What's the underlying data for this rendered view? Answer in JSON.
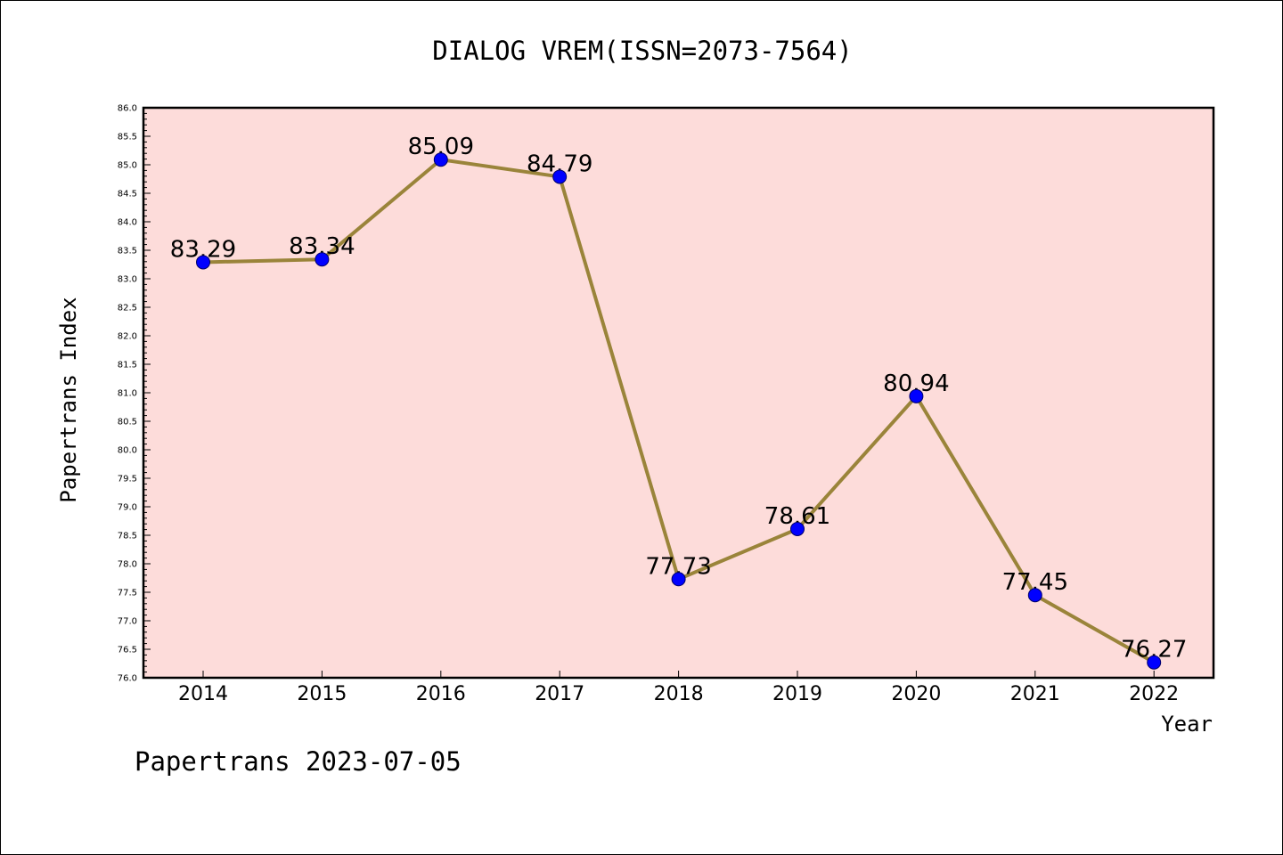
{
  "chart_data": {
    "type": "line",
    "title": "DIALOG VREM(ISSN=2073-7564)",
    "xlabel": "Year",
    "ylabel": "Papertrans Index",
    "categories": [
      "2014",
      "2015",
      "2016",
      "2017",
      "2018",
      "2019",
      "2020",
      "2021",
      "2022"
    ],
    "series": [
      {
        "values": [
          83.29,
          83.34,
          85.09,
          84.79,
          77.73,
          78.61,
          80.94,
          77.45,
          76.27
        ],
        "data_labels": [
          "83.29",
          "83.34",
          "85.09",
          "84.79",
          "77.73",
          "78.61",
          "80.94",
          "77.45",
          "76.27"
        ],
        "line_color": "#9a843a",
        "marker_color": "#0000ff"
      }
    ],
    "ylim": [
      76.0,
      86.0
    ],
    "yticks": [
      "76.0",
      "76.5",
      "77.0",
      "77.5",
      "78.0",
      "78.5",
      "79.0",
      "79.5",
      "80.0",
      "80.5",
      "81.0",
      "81.5",
      "82.0",
      "82.5",
      "83.0",
      "83.5",
      "84.0",
      "84.5",
      "85.0",
      "85.5",
      "86.0"
    ],
    "grid": false,
    "plot_background": "#fddcda"
  },
  "footer": {
    "text": "Papertrans 2023-07-05"
  }
}
